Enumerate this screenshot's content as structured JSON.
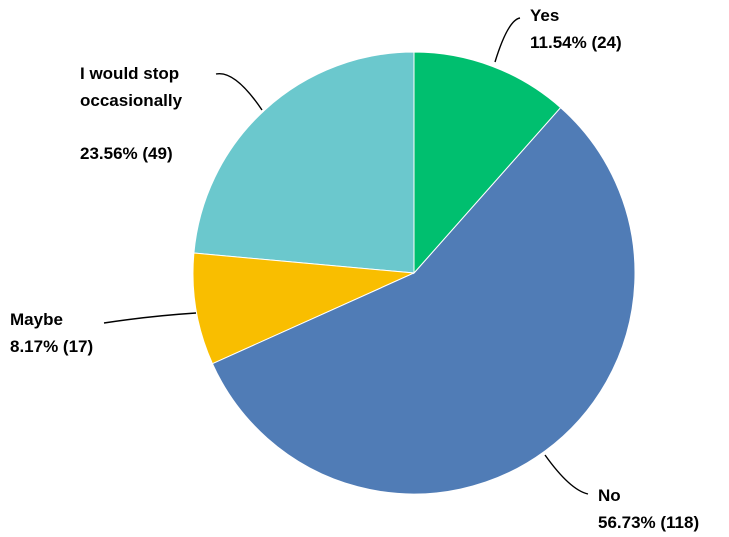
{
  "chart_data": {
    "type": "pie",
    "categories": [
      "Yes",
      "No",
      "Maybe",
      "I would stop occasionally"
    ],
    "values": [
      11.54,
      56.73,
      8.17,
      23.56
    ],
    "counts": [
      24,
      118,
      17,
      49
    ],
    "value_labels": [
      "11.54% (24)",
      "56.73% (118)",
      "8.17% (17)",
      "23.56% (49)"
    ],
    "colors": [
      "#00bf6f",
      "#507cb6",
      "#f9be00",
      "#6bc8cd"
    ]
  }
}
